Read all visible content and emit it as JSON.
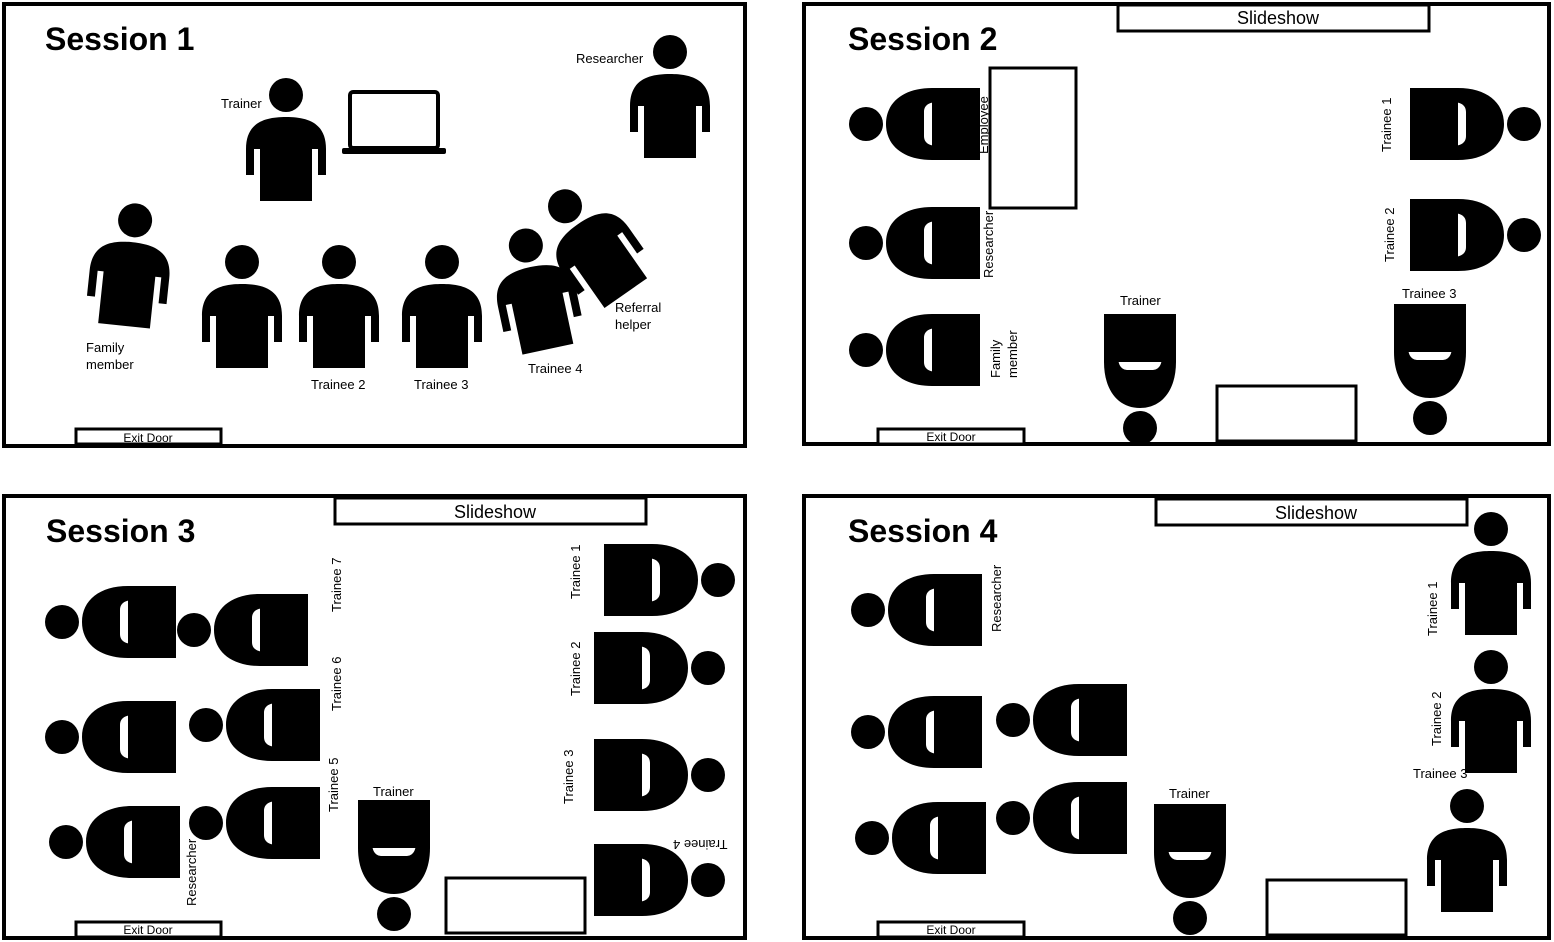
{
  "sessions": {
    "s1": {
      "title": "Session 1",
      "exit_door": "Exit Door",
      "labels": {
        "trainer": "Trainer",
        "researcher": "Researcher",
        "family_line1": "Family",
        "family_line2": "member",
        "trainee2": "Trainee 2",
        "trainee3": "Trainee 3",
        "trainee4": "Trainee 4",
        "referral_line1": "Referral",
        "referral_line2": "helper"
      }
    },
    "s2": {
      "title": "Session 2",
      "slideshow": "Slideshow",
      "exit_door": "Exit Door",
      "labels": {
        "employee": "Employee",
        "researcher": "Researcher",
        "family_line1": "Family",
        "family_line2": "member",
        "trainer": "Trainer",
        "trainee1": "Trainee 1",
        "trainee2": "Trainee 2",
        "trainee3": "Trainee 3"
      }
    },
    "s3": {
      "title": "Session 3",
      "slideshow": "Slideshow",
      "exit_door": "Exit Door",
      "labels": {
        "trainee7": "Trainee 7",
        "trainee6": "Trainee 6",
        "trainee5": "Trainee 5",
        "researcher": "Researcher",
        "trainer": "Trainer",
        "trainee1": "Trainee 1",
        "trainee2": "Trainee 2",
        "trainee3": "Trainee 3",
        "trainee4": "Trainee 4"
      }
    },
    "s4": {
      "title": "Session 4",
      "slideshow": "Slideshow",
      "labels": {
        "researcher": "Researcher",
        "trainer": "Trainer",
        "trainee1": "Trainee 1",
        "trainee2": "Trainee 2",
        "trainee3": "Trainee 3"
      }
    }
  }
}
